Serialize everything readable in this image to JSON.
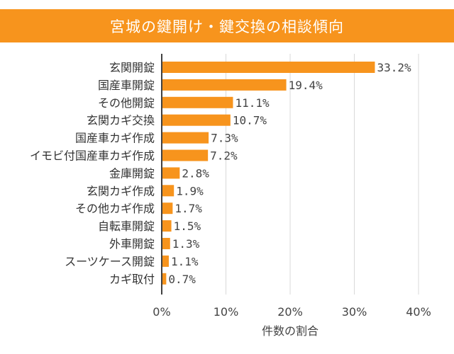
{
  "chart_data": {
    "type": "bar",
    "orientation": "horizontal",
    "title": "宮城の鍵開け・鍵交換の相談傾向",
    "xlabel": "件数の割合",
    "ylabel": "",
    "xlim": [
      0,
      40
    ],
    "x_ticks": [
      "0%",
      "10%",
      "20%",
      "30%",
      "40%"
    ],
    "grid": true,
    "bar_color": "#f7941d",
    "title_bg_color": "#f7941d",
    "categories": [
      "玄関開錠",
      "国産車開錠",
      "その他開錠",
      "玄関カギ交換",
      "国産車カギ作成",
      "イモビ付国産車カギ作成",
      "金庫開錠",
      "玄関カギ作成",
      "その他カギ作成",
      "自転車開錠",
      "外車開錠",
      "スーツケース開錠",
      "カギ取付"
    ],
    "values": [
      33.2,
      19.4,
      11.1,
      10.7,
      7.3,
      7.2,
      2.8,
      1.9,
      1.7,
      1.5,
      1.3,
      1.1,
      0.7
    ],
    "value_labels": [
      "33.2%",
      "19.4%",
      "11.1%",
      "10.7%",
      "7.3%",
      "7.2%",
      "2.8%",
      "1.9%",
      "1.7%",
      "1.5%",
      "1.3%",
      "1.1%",
      "0.7%"
    ]
  }
}
